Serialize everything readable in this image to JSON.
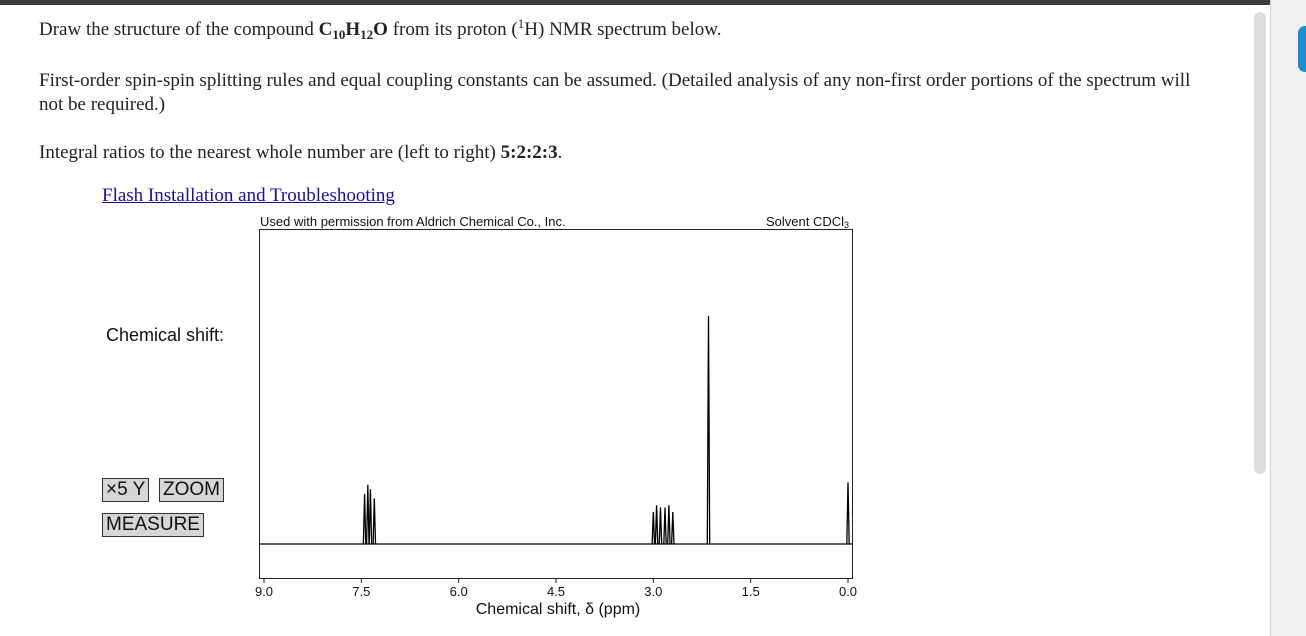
{
  "question": {
    "line1_prefix": "Draw the structure of the compound ",
    "formula": {
      "c": "C",
      "c_sub": "10",
      "h": "H",
      "h_sub": "12",
      "o": "O"
    },
    "line1_mid": " from its proton (",
    "iso_sup": "1",
    "iso_el": "H",
    "line1_suffix": ") NMR spectrum below.",
    "paragraph2": "First-order spin-spin splitting rules and equal coupling constants can be assumed. (Detailed analysis of any non-first order portions of the spectrum will not be required.)",
    "integral_prefix": "Integral ratios to the nearest whole number are (left to right) ",
    "integral_ratio": "5:2:2:3",
    "integral_suffix": "."
  },
  "flash_link": "Flash Installation and Troubleshooting",
  "spectrum": {
    "permission": "Used with permission from Aldrich Chemical Co., Inc.",
    "solvent": "Solvent CDCl",
    "solvent_sub": "3",
    "chemical_shift_label": "Chemical shift:",
    "buttons": {
      "x5y": "×5 Y",
      "zoom": "ZOOM",
      "measure": "MEASURE"
    },
    "axis_title": "Chemical shift, δ (ppm)",
    "ticks": [
      "9.0",
      "7.5",
      "6.0",
      "4.5",
      "3.0",
      "1.5",
      "0.0"
    ]
  },
  "colors": {
    "link": "#1a0dab",
    "button_bg": "#d6d6d6",
    "trace": "#000000"
  },
  "chart_data": {
    "type": "line",
    "xlabel": "Chemical shift, δ (ppm)",
    "xlim": [
      9.0,
      0.0
    ],
    "x_ticks": [
      9.0,
      7.5,
      6.0,
      4.5,
      3.0,
      1.5,
      0.0
    ],
    "y_axis_shown": false,
    "series": [
      {
        "peaks": [
          {
            "shift": 7.45,
            "relative_height": 0.22
          },
          {
            "shift": 7.4,
            "relative_height": 0.26
          },
          {
            "shift": 7.36,
            "relative_height": 0.24
          },
          {
            "shift": 7.3,
            "relative_height": 0.2
          },
          {
            "shift": 3.0,
            "relative_height": 0.14
          },
          {
            "shift": 2.95,
            "relative_height": 0.17
          },
          {
            "shift": 2.89,
            "relative_height": 0.16
          },
          {
            "shift": 2.82,
            "relative_height": 0.16
          },
          {
            "shift": 2.76,
            "relative_height": 0.17
          },
          {
            "shift": 2.7,
            "relative_height": 0.14
          },
          {
            "shift": 2.15,
            "relative_height": 1.0
          },
          {
            "shift": 0.0,
            "relative_height": 0.27
          }
        ]
      }
    ]
  }
}
